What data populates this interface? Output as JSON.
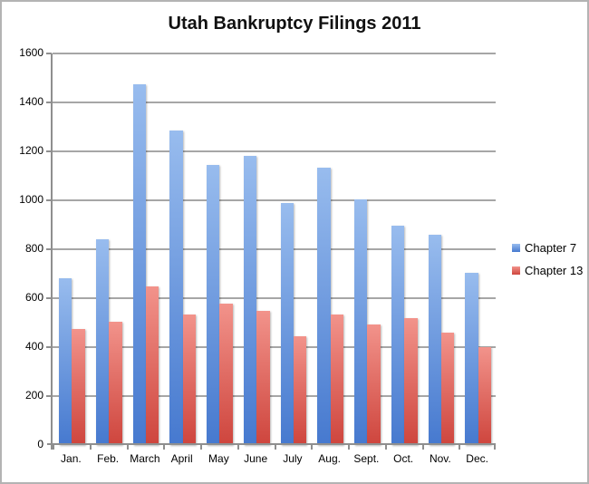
{
  "title": "Utah Bankruptcy Filings 2011",
  "colors": {
    "chapter7_top": "#98BCEE",
    "chapter7_bottom": "#4679CF",
    "chapter13_top": "#F2938B",
    "chapter13_bottom": "#CE453D",
    "gridline": "#A6A6A6",
    "axis": "#8F8F8F",
    "frame_border": "#B3B3B3",
    "background": "#FFFFFF",
    "text": "#000000"
  },
  "legend": {
    "entries": [
      {
        "label": "Chapter 7",
        "series_key": "s0"
      },
      {
        "label": "Chapter 13",
        "series_key": "s1"
      }
    ],
    "position": "right"
  },
  "chart_data": {
    "type": "bar",
    "title": "Utah Bankruptcy Filings 2011",
    "categories": [
      "Jan.",
      "Feb.",
      "March",
      "April",
      "May",
      "June",
      "July",
      "Aug.",
      "Sept.",
      "Oct.",
      "Nov.",
      "Dec."
    ],
    "series": [
      {
        "name": "Chapter 7",
        "values": [
          680,
          840,
          1475,
          1285,
          1145,
          1180,
          990,
          1135,
          1005,
          897,
          860,
          705
        ]
      },
      {
        "name": "Chapter 13",
        "values": [
          475,
          503,
          650,
          533,
          577,
          550,
          445,
          532,
          494,
          517,
          458,
          400
        ]
      }
    ],
    "xlabel": "",
    "ylabel": "",
    "ylim": [
      0,
      1600
    ],
    "yticks": [
      0,
      200,
      400,
      600,
      800,
      1000,
      1200,
      1400,
      1600
    ],
    "grid": true,
    "gridlines": "horizontal",
    "legend_position": "right"
  }
}
